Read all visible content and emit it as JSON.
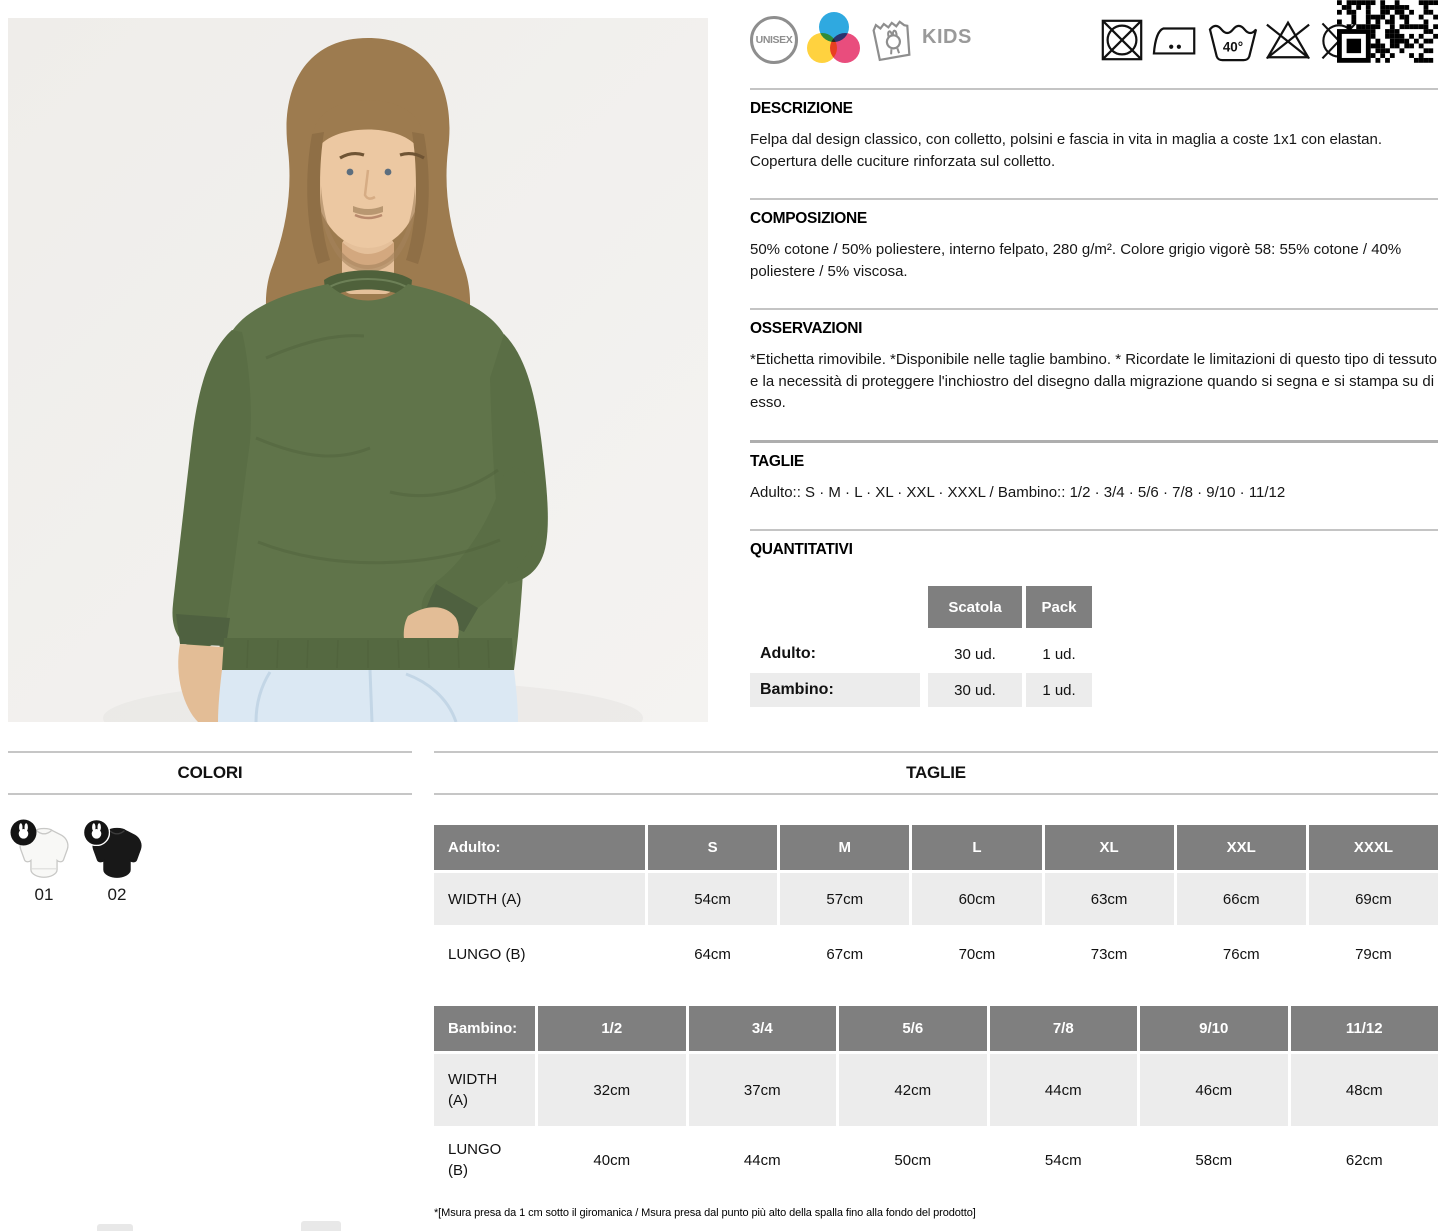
{
  "header_icons": {
    "unisex_label": "UNISEX",
    "kids_label": "KIDS",
    "wash_temp": "40°",
    "care_icons": [
      "do-not-tumble-dry",
      "iron-2-dots",
      "wash-40",
      "do-not-bleach",
      "do-not-dry-clean"
    ]
  },
  "sections": {
    "descrizione": {
      "title": "DESCRIZIONE",
      "body": "Felpa dal design classico, con colletto, polsini e fascia in vita in maglia a coste 1x1 con elastan. Copertura delle cuciture rinforzata sul colletto."
    },
    "composizione": {
      "title": "COMPOSIZIONE",
      "body": "50% cotone / 50% poliestere, interno felpato, 280 g/m². Colore grigio vigorè 58: 55% cotone / 40% poliestere / 5% viscosa."
    },
    "osservazioni": {
      "title": "OSSERVAZIONI",
      "body": "*Etichetta rimovibile. *Disponibile nelle taglie bambino. * Ricordate le limitazioni di questo tipo di tessuto e la necessità di proteggere l'inchiostro del disegno dalla migrazione quando si segna e si stampa su di esso."
    },
    "taglie": {
      "title": "TAGLIE",
      "body": "Adulto:: S · M · L · XL · XXL · XXXL / Bambino:: 1/2 · 3/4 · 5/6 · 7/8 · 9/10 · 11/12"
    },
    "quantitativi": {
      "title": "QUANTITATIVI",
      "col_headers": [
        "Scatola",
        "Pack"
      ],
      "rows": [
        {
          "label": "Adulto:",
          "scatola": "30 ud.",
          "pack": "1 ud."
        },
        {
          "label": "Bambino:",
          "scatola": "30 ud.",
          "pack": "1 ud."
        }
      ]
    }
  },
  "colori_panel": {
    "title": "COLORI",
    "swatches": [
      {
        "code": "01",
        "color": "#f8f8f6",
        "kids_available": true
      },
      {
        "code": "02",
        "color": "#181818",
        "kids_available": true
      }
    ]
  },
  "size_panel": {
    "title": "TAGLIE",
    "adult": {
      "label": "Adulto:",
      "sizes": [
        "S",
        "M",
        "L",
        "XL",
        "XXL",
        "XXXL"
      ],
      "rows": [
        {
          "label": "WIDTH (A)",
          "values": [
            "54cm",
            "57cm",
            "60cm",
            "63cm",
            "66cm",
            "69cm"
          ]
        },
        {
          "label": "LUNGO (B)",
          "values": [
            "64cm",
            "67cm",
            "70cm",
            "73cm",
            "76cm",
            "79cm"
          ]
        }
      ]
    },
    "kids": {
      "label": "Bambino:",
      "sizes": [
        "1/2",
        "3/4",
        "5/6",
        "7/8",
        "9/10",
        "11/12"
      ],
      "rows": [
        {
          "label": "WIDTH (A)",
          "values": [
            "32cm",
            "37cm",
            "42cm",
            "44cm",
            "46cm",
            "48cm"
          ]
        },
        {
          "label": "LUNGO (B)",
          "values": [
            "40cm",
            "44cm",
            "50cm",
            "54cm",
            "58cm",
            "62cm"
          ]
        }
      ]
    },
    "footnote": "*[Msura presa da 1 cm sotto il giromanica / Msura presa dal punto più alto della spalla fino alla fondo del prodotto]"
  },
  "palette": {
    "sweatshirt_green": "#60744a",
    "jeans_blue": "#dbe8f3",
    "table_header_gray": "#7f7f7f",
    "row_gray": "#ececec",
    "icon_gray": "#8e8e8e",
    "cmy_blue": "#2fa9e0",
    "cmy_yellow": "#ffd23f",
    "cmy_pink": "#e94d7d"
  }
}
